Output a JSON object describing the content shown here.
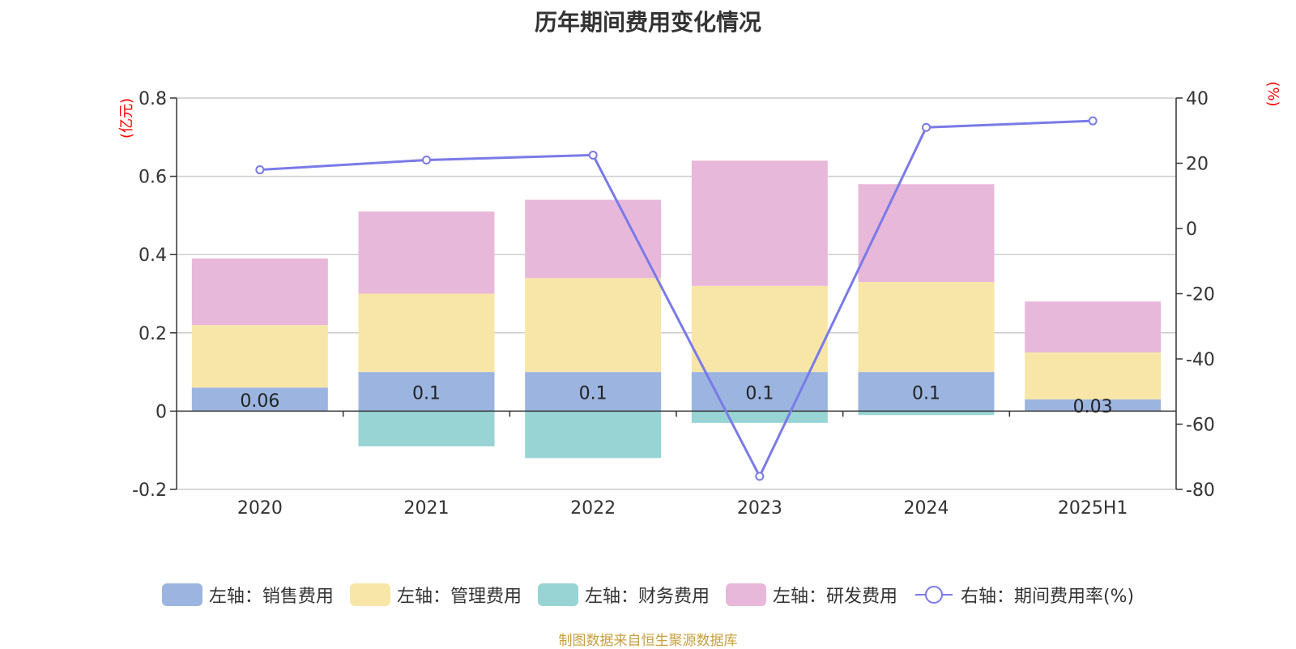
{
  "chart_data": {
    "type": "bar",
    "title": "历年期间费用变化情况",
    "categories": [
      "2020",
      "2021",
      "2022",
      "2023",
      "2024",
      "2025H1"
    ],
    "left_axis": {
      "unit": "(亿元)",
      "ylim": [
        -0.2,
        0.8
      ],
      "ticks": [
        "0.8",
        "0.6",
        "0.4",
        "0.2",
        "0",
        "-0.2"
      ]
    },
    "right_axis": {
      "unit": "(%)",
      "ylim": [
        -80,
        40
      ],
      "ticks": [
        "40",
        "20",
        "0",
        "-20",
        "-40",
        "-60",
        "-80"
      ]
    },
    "series": [
      {
        "name": "左轴：销售费用",
        "axis": "left",
        "color": "#9bb5e0",
        "values": [
          0.06,
          0.1,
          0.1,
          0.1,
          0.1,
          0.03
        ],
        "labels": [
          "0.06",
          "0.1",
          "0.1",
          "0.1",
          "0.1",
          "0.03"
        ]
      },
      {
        "name": "左轴：管理费用",
        "axis": "left",
        "color": "#f7e6a8",
        "values": [
          0.16,
          0.2,
          0.24,
          0.22,
          0.23,
          0.12
        ]
      },
      {
        "name": "左轴：财务费用",
        "axis": "left",
        "color": "#98d4d4",
        "values": [
          0.0,
          -0.09,
          -0.12,
          -0.03,
          -0.01,
          0.0
        ]
      },
      {
        "name": "左轴：研发费用",
        "axis": "left",
        "color": "#e8b8da",
        "values": [
          0.17,
          0.21,
          0.2,
          0.32,
          0.25,
          0.13
        ]
      },
      {
        "name": "右轴：期间费用率(%)",
        "axis": "right",
        "type": "line",
        "color": "#7a7ae8",
        "values": [
          18.0,
          21.0,
          22.5,
          -76.0,
          31.0,
          33.0
        ]
      }
    ],
    "grid": true,
    "legend_position": "bottom"
  },
  "source": "制图数据来自恒生聚源数据库"
}
